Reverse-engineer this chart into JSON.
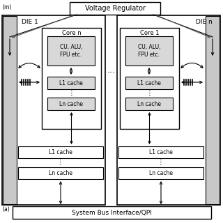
{
  "bg_color": "#ffffff",
  "title_voltage": "Voltage Regulator",
  "title_sysbus": "System Bus Interface/QPI",
  "die1_label": "DIE 1",
  "dien_label": "DIE n",
  "core_n_label": "Core n",
  "core_1_label": "Core 1",
  "cu_alu_text": "CU, ALU,\nFPU etc.",
  "l1_cache": "L1 cache",
  "ln_cache": "Ln cache",
  "fig_w": 3.2,
  "fig_h": 3.2,
  "dpi": 100
}
